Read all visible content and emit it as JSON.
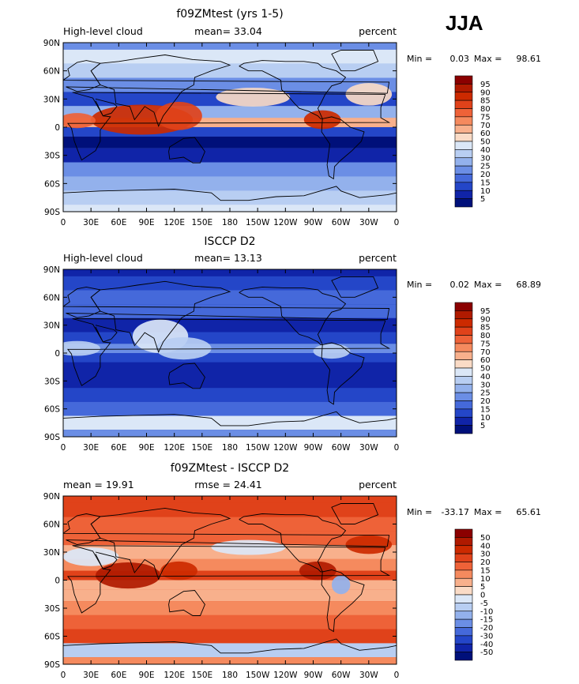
{
  "season_label": "JJA",
  "chart_data": [
    {
      "type": "heatmap",
      "title": "f09ZMtest (yrs 1-5)",
      "left_label": "High-level cloud",
      "center_label": "mean=  33.04",
      "right_label": "percent",
      "minmax": {
        "min_label": "Min =",
        "min": "0.03",
        "max_label": "Max =",
        "max": "98.61"
      },
      "x_ticks": [
        "0",
        "30E",
        "60E",
        "90E",
        "120E",
        "150E",
        "180",
        "150W",
        "120W",
        "90W",
        "60W",
        "30W",
        "0"
      ],
      "y_ticks": [
        "90N",
        "60N",
        "30N",
        "0",
        "30S",
        "60S",
        "90S"
      ],
      "colorbar": {
        "labels": [
          "95",
          "90",
          "85",
          "80",
          "75",
          "70",
          "60",
          "50",
          "40",
          "30",
          "25",
          "20",
          "15",
          "10",
          "5"
        ],
        "colors": [
          "#8b0000",
          "#b01a00",
          "#cc2a00",
          "#e0421a",
          "#ee6238",
          "#f58a5e",
          "#f8b08c",
          "#fadbc6",
          "#dbe7f7",
          "#b8cef2",
          "#93b1ec",
          "#6b8ee5",
          "#4569da",
          "#2446c8",
          "#1024a8",
          "#00107a"
        ]
      },
      "zonal_bands": [
        {
          "lat": 90,
          "level": 4
        },
        {
          "lat": 75,
          "level": 7
        },
        {
          "lat": 60,
          "level": 6
        },
        {
          "lat": 45,
          "level": 4
        },
        {
          "lat": 30,
          "level": 2
        },
        {
          "lat": 15,
          "level": 5
        },
        {
          "lat": 5,
          "level": 9
        },
        {
          "lat": -5,
          "level": 2
        },
        {
          "lat": -15,
          "level": 0
        },
        {
          "lat": -30,
          "level": 1
        },
        {
          "lat": -45,
          "level": 4
        },
        {
          "lat": -60,
          "level": 5
        },
        {
          "lat": -75,
          "level": 6
        },
        {
          "lat": -90,
          "level": 7
        }
      ],
      "anomalies": [
        {
          "lon": 85,
          "lat": 8,
          "w": 55,
          "h": 16,
          "level": 13
        },
        {
          "lon": 125,
          "lat": 12,
          "w": 25,
          "h": 15,
          "level": 12
        },
        {
          "lon": 280,
          "lat": 8,
          "w": 20,
          "h": 10,
          "level": 13
        },
        {
          "lon": 15,
          "lat": 7,
          "w": 20,
          "h": 8,
          "level": 11
        },
        {
          "lon": 205,
          "lat": 32,
          "w": 40,
          "h": 10,
          "level": 8
        },
        {
          "lon": 330,
          "lat": 35,
          "w": 25,
          "h": 12,
          "level": 8
        }
      ]
    },
    {
      "type": "heatmap",
      "title": "ISCCP D2",
      "left_label": "High-level cloud",
      "center_label": "mean=  13.13",
      "right_label": "percent",
      "minmax": {
        "min_label": "Min =",
        "min": "0.02",
        "max_label": "Max =",
        "max": "68.89"
      },
      "x_ticks": [
        "0",
        "30E",
        "60E",
        "90E",
        "120E",
        "150E",
        "180",
        "150W",
        "120W",
        "90W",
        "60W",
        "30W",
        "0"
      ],
      "y_ticks": [
        "90N",
        "60N",
        "30N",
        "0",
        "30S",
        "60S",
        "90S"
      ],
      "colorbar": {
        "labels": [
          "95",
          "90",
          "85",
          "80",
          "75",
          "70",
          "60",
          "50",
          "40",
          "30",
          "25",
          "20",
          "15",
          "10",
          "5"
        ],
        "colors": [
          "#8b0000",
          "#b01a00",
          "#cc2a00",
          "#e0421a",
          "#ee6238",
          "#f58a5e",
          "#f8b08c",
          "#fadbc6",
          "#dbe7f7",
          "#b8cef2",
          "#93b1ec",
          "#6b8ee5",
          "#4569da",
          "#2446c8",
          "#1024a8",
          "#00107a"
        ]
      },
      "zonal_bands": [
        {
          "lat": 90,
          "level": 1
        },
        {
          "lat": 75,
          "level": 2
        },
        {
          "lat": 60,
          "level": 3
        },
        {
          "lat": 45,
          "level": 3
        },
        {
          "lat": 30,
          "level": 1
        },
        {
          "lat": 15,
          "level": 2
        },
        {
          "lat": 5,
          "level": 4
        },
        {
          "lat": -5,
          "level": 2
        },
        {
          "lat": -15,
          "level": 1
        },
        {
          "lat": -30,
          "level": 1
        },
        {
          "lat": -45,
          "level": 2
        },
        {
          "lat": -60,
          "level": 3
        },
        {
          "lat": -75,
          "level": 7
        },
        {
          "lat": -90,
          "level": 4
        }
      ],
      "anomalies": [
        {
          "lon": 105,
          "lat": 18,
          "w": 30,
          "h": 18,
          "level": 7
        },
        {
          "lon": 130,
          "lat": 5,
          "w": 30,
          "h": 12,
          "level": 6
        },
        {
          "lon": 15,
          "lat": 5,
          "w": 25,
          "h": 8,
          "level": 6
        },
        {
          "lon": 290,
          "lat": 2,
          "w": 20,
          "h": 8,
          "level": 6
        }
      ]
    },
    {
      "type": "heatmap",
      "title": "f09ZMtest - ISCCP D2",
      "left_label": "mean =   19.91",
      "center_label": "rmse =   24.41",
      "right_label": "percent",
      "minmax": {
        "min_label": "Min =",
        "min": "-33.17",
        "max_label": "Max =",
        "max": "65.61"
      },
      "x_ticks": [
        "0",
        "30E",
        "60E",
        "90E",
        "120E",
        "150E",
        "180",
        "150W",
        "120W",
        "90W",
        "60W",
        "30W",
        "0"
      ],
      "y_ticks": [
        "90N",
        "60N",
        "30N",
        "0",
        "30S",
        "60S",
        "90S"
      ],
      "colorbar": {
        "labels": [
          "50",
          "40",
          "30",
          "20",
          "15",
          "10",
          "5",
          "0",
          "-5",
          "-10",
          "-15",
          "-20",
          "-30",
          "-40",
          "-50"
        ],
        "colors": [
          "#8b0000",
          "#b01a00",
          "#cc2a00",
          "#e0421a",
          "#ee6238",
          "#f58a5e",
          "#f8b08c",
          "#fadbc6",
          "#dbe7f7",
          "#b8cef2",
          "#93b1ec",
          "#6b8ee5",
          "#4569da",
          "#2446c8",
          "#1024a8",
          "#00107a"
        ]
      },
      "zonal_bands": [
        {
          "lat": 90,
          "level": 12
        },
        {
          "lat": 75,
          "level": 12
        },
        {
          "lat": 60,
          "level": 11
        },
        {
          "lat": 45,
          "level": 11
        },
        {
          "lat": 30,
          "level": 9
        },
        {
          "lat": 15,
          "level": 10
        },
        {
          "lat": 5,
          "level": 12
        },
        {
          "lat": -5,
          "level": 9
        },
        {
          "lat": -15,
          "level": 9
        },
        {
          "lat": -30,
          "level": 10
        },
        {
          "lat": -45,
          "level": 11
        },
        {
          "lat": -60,
          "level": 12
        },
        {
          "lat": -75,
          "level": 6
        },
        {
          "lat": -90,
          "level": 10
        }
      ],
      "anomalies": [
        {
          "lon": 70,
          "lat": 5,
          "w": 35,
          "h": 14,
          "level": 14
        },
        {
          "lon": 125,
          "lat": 10,
          "w": 20,
          "h": 10,
          "level": 13
        },
        {
          "lon": 275,
          "lat": 10,
          "w": 20,
          "h": 10,
          "level": 14
        },
        {
          "lon": 330,
          "lat": 38,
          "w": 25,
          "h": 10,
          "level": 13
        },
        {
          "lon": 200,
          "lat": 35,
          "w": 40,
          "h": 8,
          "level": 7
        },
        {
          "lon": 300,
          "lat": -5,
          "w": 10,
          "h": 10,
          "level": 5
        },
        {
          "lon": 30,
          "lat": 25,
          "w": 30,
          "h": 10,
          "level": 7
        }
      ]
    }
  ]
}
